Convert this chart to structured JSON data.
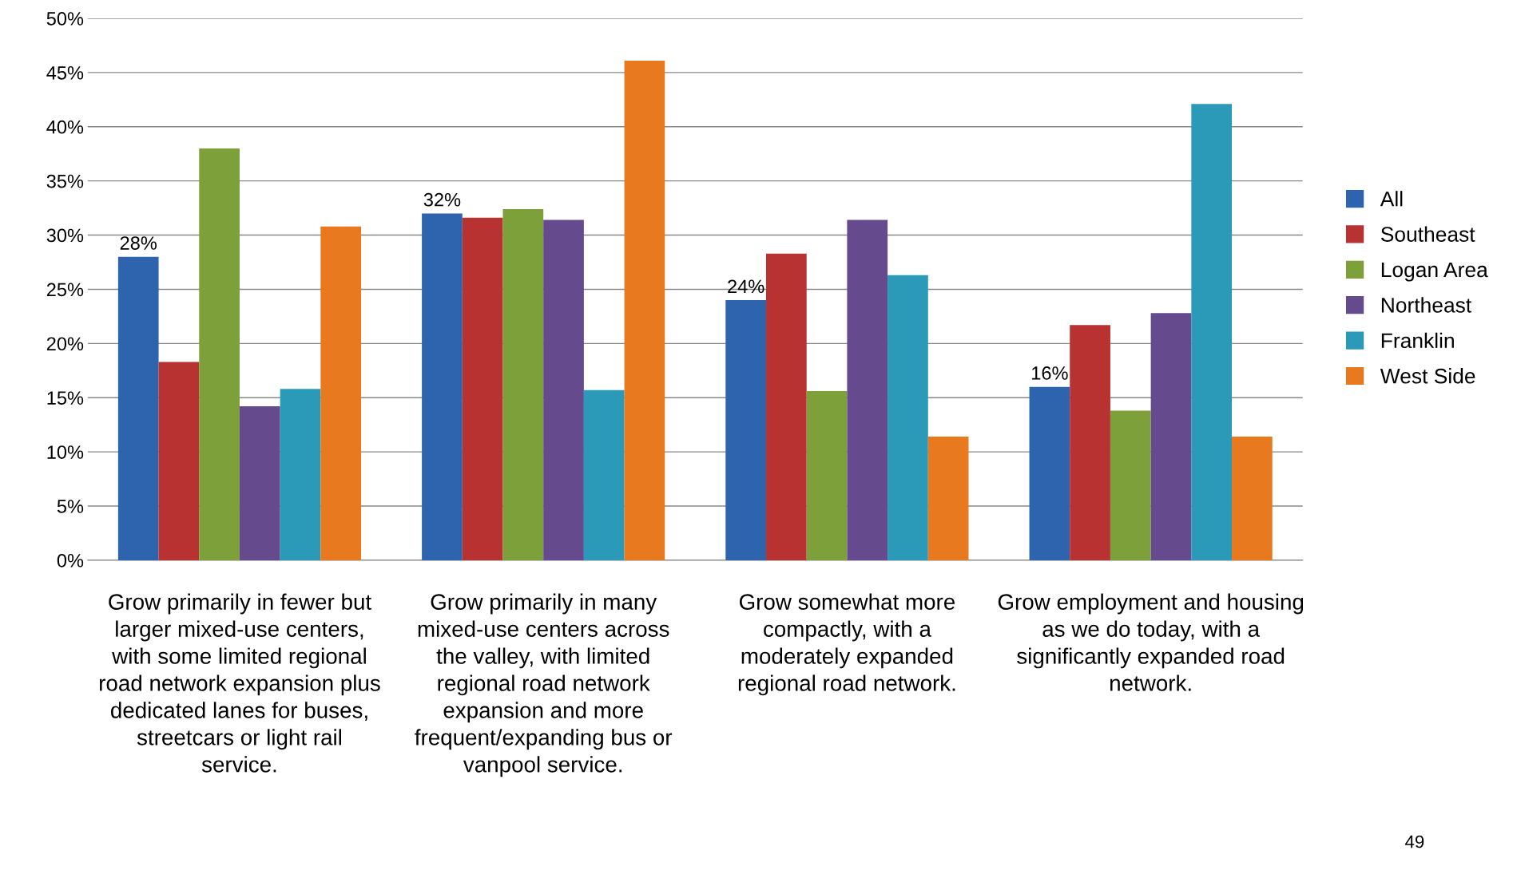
{
  "chart_data": {
    "type": "bar",
    "categories": [
      "Grow primarily in fewer but larger mixed-use centers, with some limited regional road network expansion plus dedicated lanes for buses, streetcars or light rail service.",
      "Grow primarily in many mixed-use centers across the valley, with limited regional road network expansion and more frequent/expanding bus or vanpool service.",
      "Grow somewhat more compactly, with a moderately expanded regional road network.",
      "Grow employment and housing as we do today, with a significantly expanded road network."
    ],
    "series": [
      {
        "name": "All",
        "color": "#2e64ad",
        "values": [
          28,
          32,
          24,
          16
        ],
        "value_labels": [
          "28%",
          "32%",
          "24%",
          "16%"
        ]
      },
      {
        "name": "Southeast",
        "color": "#b83232",
        "values": [
          18.3,
          31.6,
          28.3,
          21.7
        ]
      },
      {
        "name": "Logan Area",
        "color": "#7ea03a",
        "values": [
          38,
          32.4,
          15.6,
          13.8
        ]
      },
      {
        "name": "Northeast",
        "color": "#664a8e",
        "values": [
          14.2,
          31.4,
          31.4,
          22.8
        ]
      },
      {
        "name": "Franklin",
        "color": "#2b9ab8",
        "values": [
          15.8,
          15.7,
          26.3,
          42.1
        ]
      },
      {
        "name": "West Side",
        "color": "#e8791f",
        "values": [
          30.8,
          46.1,
          11.4,
          11.4
        ]
      }
    ],
    "ylim": [
      0,
      50
    ],
    "yticks": [
      {
        "value": 0,
        "label": "0%"
      },
      {
        "value": 5,
        "label": "5%"
      },
      {
        "value": 10,
        "label": "10%"
      },
      {
        "value": 15,
        "label": "15%"
      },
      {
        "value": 20,
        "label": "20%"
      },
      {
        "value": 25,
        "label": "25%"
      },
      {
        "value": 30,
        "label": "30%"
      },
      {
        "value": 35,
        "label": "35%"
      },
      {
        "value": 40,
        "label": "40%"
      },
      {
        "value": 45,
        "label": "45%"
      },
      {
        "value": 50,
        "label": "50%"
      }
    ],
    "grid": "y",
    "legend": "right",
    "marker": "square",
    "annotations": [
      "49"
    ]
  }
}
